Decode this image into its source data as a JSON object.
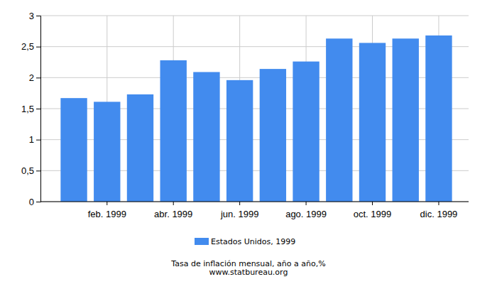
{
  "chart_data": {
    "type": "bar",
    "title": "Tasa de inflación mensual, año a año,%",
    "subtitle": "www.statbureau.org",
    "categories": [
      null,
      "feb. 1999",
      null,
      "abr. 1999",
      null,
      "jun. 1999",
      null,
      "ago. 1999",
      null,
      "oct. 1999",
      null,
      "dic. 1999"
    ],
    "series": [
      {
        "name": "Estados Unidos, 1999",
        "color": "#428bee",
        "values": [
          1.67,
          1.61,
          1.73,
          2.28,
          2.09,
          1.96,
          2.14,
          2.26,
          2.63,
          2.56,
          2.63,
          2.68
        ]
      }
    ],
    "ylim": [
      0,
      3
    ],
    "yticks": [
      0,
      {
        "value": 0.5,
        "label": "0,5"
      },
      1,
      {
        "value": 1.5,
        "label": "1,5"
      },
      2,
      {
        "value": 2.5,
        "label": "2,5"
      },
      3
    ],
    "grid": true,
    "legend": "bottom"
  }
}
